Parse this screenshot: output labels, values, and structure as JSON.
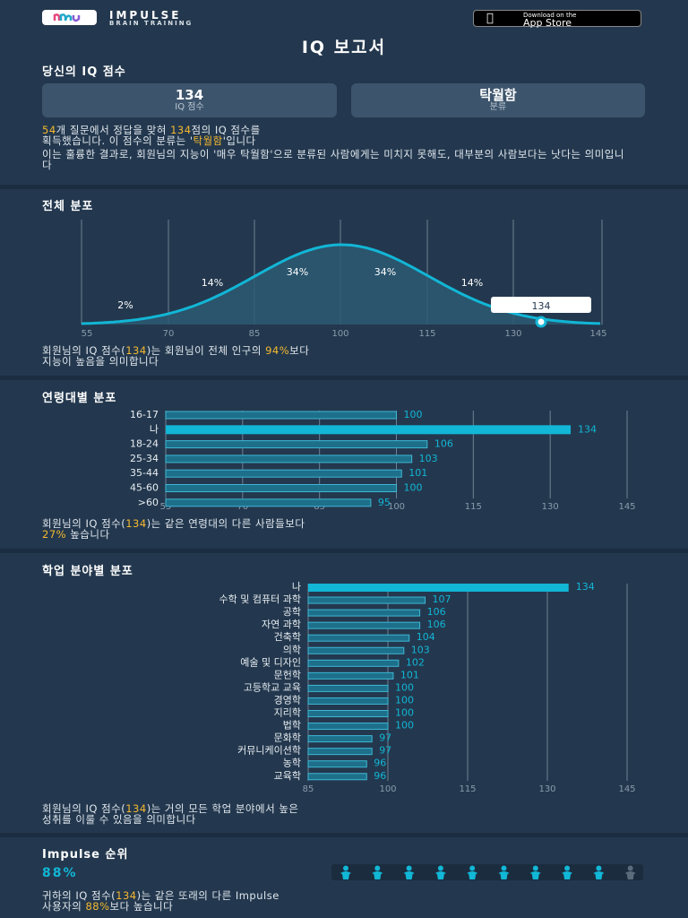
{
  "header": {
    "brand": "IMPULSE",
    "brand_sub": "BRAIN TRAINING",
    "appstore_line1": "Download on the",
    "appstore_line2": "App Store"
  },
  "title": "IQ 보고서",
  "score_section": {
    "heading": "당신의 IQ 점수",
    "score_value": "134",
    "score_label": "IQ 점수",
    "class_value": "탁월함",
    "class_label": "분류",
    "p1_a": "54",
    "p1_b": "개 질문에서 정답을 맞혀 ",
    "p1_c": "134",
    "p1_d": "점의 IQ 점수를",
    "p1_e": "획득했습니다. 이 점수의 분류는 '",
    "p1_f": "탁월함",
    "p1_g": "'입니다",
    "p2": "이는 훌륭한 결과로, 회원님의 지능이 '매우 탁월함'으로 분류된 사람에게는 미치지 못해도, 대부분의 사람보다는 낫다는 의미입니다"
  },
  "distribution": {
    "heading": "전체 분포",
    "x_ticks": [
      "55",
      "70",
      "85",
      "100",
      "115",
      "130",
      "145"
    ],
    "pct_labels": [
      "2%",
      "14%",
      "34%",
      "34%",
      "14%"
    ],
    "marker_label": "134",
    "text_a": "회원님의 IQ 점수(",
    "text_b": "134",
    "text_c": ")는 회원님이 전체 인구의 ",
    "text_d": "94%",
    "text_e": "보다",
    "text_f": "지능이 높음을 의미합니다"
  },
  "age": {
    "heading": "연령대별 분포",
    "chart_data": {
      "type": "bar",
      "orientation": "horizontal",
      "categories": [
        "16-17",
        "나",
        "18-24",
        "25-34",
        "35-44",
        "45-60",
        ">60"
      ],
      "values": [
        100,
        134,
        106,
        103,
        101,
        100,
        95
      ],
      "highlight": "나",
      "xlim": [
        55,
        145
      ],
      "x_ticks": [
        "55",
        "70",
        "85",
        "100",
        "115",
        "130",
        "145"
      ]
    },
    "text_a": "회원님의 IQ 점수(",
    "text_b": "134",
    "text_c": ")는 같은 연령대의 다른 사람들보다",
    "text_d": "27%",
    "text_e": " 높습니다"
  },
  "field": {
    "heading": "학업 분야별 분포",
    "chart_data": {
      "type": "bar",
      "orientation": "horizontal",
      "categories": [
        "나",
        "수학 및 컴퓨터 과학",
        "공학",
        "자연 과학",
        "건축학",
        "의학",
        "예술 및 디자인",
        "문헌학",
        "고등학교 교육",
        "경영학",
        "지리학",
        "법학",
        "문화학",
        "커뮤니케이션학",
        "농학",
        "교육학"
      ],
      "values": [
        134,
        107,
        106,
        106,
        104,
        103,
        102,
        101,
        100,
        100,
        100,
        100,
        97,
        97,
        96,
        96
      ],
      "highlight": "나",
      "xlim": [
        85,
        145
      ],
      "x_ticks": [
        "85",
        "100",
        "115",
        "130",
        "145"
      ]
    },
    "text_a": "회원님의 IQ 점수(",
    "text_b": "134",
    "text_c": ")는 거의 모든 학업 분야에서 높은",
    "text_d": "성취를 이룰 수 있음을 의미합니다"
  },
  "rank": {
    "heading": "Impulse 순위",
    "value": "88%",
    "people_total": 10,
    "people_filled": 9,
    "text_a": "귀하의 IQ 점수(",
    "text_b": "134",
    "text_c": ")는 같은 또래의 다른 Impulse",
    "text_d": "사용자의 ",
    "text_e": "88%",
    "text_f": "보다 높습니다"
  },
  "colors": {
    "accent": "#12b6d6",
    "highlight": "#f5b830",
    "background": "#23384e",
    "bar_fill": "#1d6f8a"
  }
}
